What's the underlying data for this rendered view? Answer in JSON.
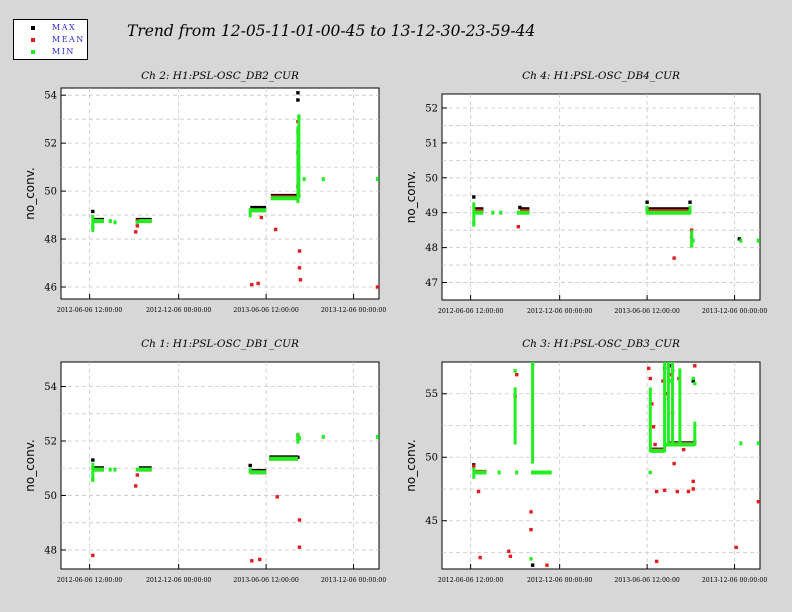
{
  "title": "Trend from 12-05-11-01-00-45 to 13-12-30-23-59-44",
  "legend": [
    {
      "label": "MAX",
      "color": "#000000"
    },
    {
      "label": "MEAN",
      "color": "#e41a1c"
    },
    {
      "label": "MIN",
      "color": "#22ee22"
    }
  ],
  "chart_data": [
    {
      "type": "scatter",
      "title": "Ch 2: H1:PSL-OSC_DB2_CUR",
      "ylabel": "no_conv.",
      "ylim": [
        45.5,
        54.3
      ],
      "yticks": [
        46,
        48,
        50,
        52,
        54
      ],
      "xlim": [
        0,
        1000
      ],
      "xticks": [
        {
          "x": 90,
          "label": "2012-06-06 12:00:00"
        },
        {
          "x": 370,
          "label": "2012-12-06 00:00:00"
        },
        {
          "x": 645,
          "label": "2013-06-06 12:00:00"
        },
        {
          "x": 920,
          "label": "2013-12-06 00:00:00"
        }
      ],
      "grid": true,
      "segments": {
        "MIN": [
          [
            100,
            135,
            48.75
          ],
          [
            150,
            160,
            48.75
          ],
          [
            165,
            175,
            48.7
          ],
          [
            235,
            240,
            48.7
          ],
          [
            245,
            285,
            48.75
          ],
          [
            595,
            645,
            49.2
          ],
          [
            660,
            745,
            49.7
          ],
          [
            760,
            765,
            50.5
          ],
          [
            820,
            825,
            50.5
          ],
          [
            990,
            995,
            50.5
          ]
        ],
        "MAX": [
          [
            100,
            135,
            48.8
          ],
          [
            235,
            285,
            48.8
          ],
          [
            595,
            645,
            49.3
          ],
          [
            660,
            745,
            49.8
          ]
        ],
        "MEAN": [
          [
            100,
            135,
            48.75
          ],
          [
            235,
            285,
            48.75
          ],
          [
            595,
            645,
            49.2
          ],
          [
            660,
            745,
            49.75
          ]
        ]
      },
      "vlines": {
        "MIN": [
          [
            100,
            48.3,
            49.0
          ],
          [
            595,
            48.9,
            49.3
          ],
          [
            745,
            49.5,
            52.7
          ],
          [
            748,
            49.7,
            53.2
          ]
        ]
      },
      "points": {
        "MAX": [
          [
            100,
            49.15
          ],
          [
            745,
            54.1
          ],
          [
            745,
            53.8
          ]
        ],
        "MEAN": [
          [
            235,
            48.3
          ],
          [
            240,
            48.55
          ],
          [
            600,
            46.1
          ],
          [
            620,
            46.15
          ],
          [
            630,
            48.9
          ],
          [
            675,
            48.4
          ],
          [
            745,
            52.9
          ],
          [
            745,
            51.6
          ],
          [
            745,
            50.2
          ],
          [
            748,
            49.8
          ],
          [
            750,
            47.5
          ],
          [
            750,
            46.8
          ],
          [
            753,
            46.3
          ],
          [
            995,
            46.0
          ]
        ],
        "MIN": [
          [
            100,
            48.5
          ],
          [
            745,
            52.5
          ],
          [
            748,
            53.1
          ],
          [
            748,
            50.9
          ]
        ]
      }
    },
    {
      "type": "scatter",
      "title": "Ch 4: H1:PSL-OSC_DB4_CUR",
      "ylabel": "no_conv.",
      "ylim": [
        46.5,
        52.4
      ],
      "yticks": [
        47,
        48,
        49,
        50,
        51,
        52
      ],
      "xlim": [
        0,
        1000
      ],
      "xticks": [
        {
          "x": 90,
          "label": "2012-06-06 12:00:00"
        },
        {
          "x": 370,
          "label": "2012-12-06 00:00:00"
        },
        {
          "x": 645,
          "label": "2013-06-06 12:00:00"
        },
        {
          "x": 920,
          "label": "2013-12-06 00:00:00"
        }
      ],
      "grid": true,
      "segments": {
        "MIN": [
          [
            100,
            130,
            49.0
          ],
          [
            155,
            160,
            49.0
          ],
          [
            180,
            185,
            49.0
          ],
          [
            235,
            240,
            49.0
          ],
          [
            245,
            275,
            49.0
          ],
          [
            645,
            780,
            49.0
          ],
          [
            785,
            790,
            48.2
          ],
          [
            935,
            940,
            48.2
          ],
          [
            990,
            995,
            48.2
          ]
        ],
        "MAX": [
          [
            100,
            130,
            49.1
          ],
          [
            245,
            275,
            49.1
          ],
          [
            645,
            780,
            49.1
          ]
        ],
        "MEAN": [
          [
            100,
            130,
            49.05
          ],
          [
            245,
            275,
            49.05
          ],
          [
            645,
            780,
            49.05
          ]
        ]
      },
      "vlines": {
        "MIN": [
          [
            100,
            48.6,
            49.3
          ],
          [
            645,
            48.95,
            49.2
          ],
          [
            780,
            48.95,
            49.2
          ],
          [
            785,
            48.1,
            48.5
          ]
        ]
      },
      "points": {
        "MAX": [
          [
            100,
            49.45
          ],
          [
            245,
            49.15
          ],
          [
            645,
            49.3
          ],
          [
            780,
            49.3
          ],
          [
            935,
            48.25
          ]
        ],
        "MEAN": [
          [
            240,
            48.6
          ],
          [
            645,
            49.1
          ],
          [
            730,
            47.7
          ],
          [
            785,
            48.5
          ],
          [
            785,
            48.3
          ]
        ],
        "MIN": [
          [
            100,
            48.7
          ],
          [
            785,
            48.05
          ]
        ]
      }
    },
    {
      "type": "scatter",
      "title": "Ch 1: H1:PSL-OSC_DB1_CUR",
      "ylabel": "no_conv.",
      "ylim": [
        47.3,
        54.9
      ],
      "yticks": [
        48,
        50,
        52,
        54
      ],
      "xlim": [
        0,
        1000
      ],
      "xticks": [
        {
          "x": 90,
          "label": "2012-06-06 12:00:00"
        },
        {
          "x": 370,
          "label": "2012-12-06 00:00:00"
        },
        {
          "x": 645,
          "label": "2013-06-06 12:00:00"
        },
        {
          "x": 920,
          "label": "2013-12-06 00:00:00"
        }
      ],
      "grid": true,
      "segments": {
        "MIN": [
          [
            100,
            135,
            50.95
          ],
          [
            150,
            155,
            50.95
          ],
          [
            165,
            170,
            50.95
          ],
          [
            235,
            240,
            50.95
          ],
          [
            245,
            285,
            50.95
          ],
          [
            595,
            645,
            50.85
          ],
          [
            655,
            745,
            51.35
          ],
          [
            745,
            755,
            52.1
          ],
          [
            820,
            825,
            52.15
          ],
          [
            990,
            995,
            52.15
          ]
        ],
        "MAX": [
          [
            100,
            135,
            51.0
          ],
          [
            245,
            285,
            51.0
          ],
          [
            595,
            645,
            50.9
          ],
          [
            655,
            745,
            51.4
          ]
        ],
        "MEAN": [
          [
            100,
            135,
            50.95
          ],
          [
            245,
            285,
            50.95
          ],
          [
            595,
            645,
            50.85
          ],
          [
            655,
            745,
            51.35
          ]
        ]
      },
      "vlines": {
        "MIN": [
          [
            100,
            50.5,
            51.2
          ],
          [
            595,
            50.8,
            51.0
          ],
          [
            745,
            51.9,
            52.3
          ]
        ]
      },
      "points": {
        "MAX": [
          [
            100,
            51.3
          ],
          [
            595,
            51.1
          ],
          [
            745,
            51.4
          ]
        ],
        "MEAN": [
          [
            100,
            47.8
          ],
          [
            235,
            50.35
          ],
          [
            240,
            50.75
          ],
          [
            600,
            47.6
          ],
          [
            625,
            47.65
          ],
          [
            680,
            49.95
          ],
          [
            750,
            49.1
          ],
          [
            750,
            48.1
          ],
          [
            745,
            52.2
          ]
        ],
        "MIN": [
          [
            100,
            50.6
          ],
          [
            745,
            52.05
          ]
        ]
      }
    },
    {
      "type": "scatter",
      "title": "Ch 3: H1:PSL-OSC_DB3_CUR",
      "ylabel": "no_conv.",
      "ylim": [
        41.2,
        57.5
      ],
      "yticks": [
        45,
        50,
        55
      ],
      "xlim": [
        0,
        1000
      ],
      "xticks": [
        {
          "x": 90,
          "label": "2012-06-06 12:00:00"
        },
        {
          "x": 370,
          "label": "2012-12-06 00:00:00"
        },
        {
          "x": 645,
          "label": "2013-06-06 12:00:00"
        },
        {
          "x": 920,
          "label": "2013-12-06 00:00:00"
        }
      ],
      "grid": true,
      "segments": {
        "MIN": [
          [
            100,
            140,
            48.8
          ],
          [
            175,
            180,
            48.8
          ],
          [
            230,
            235,
            48.8
          ],
          [
            280,
            285,
            48.8
          ],
          [
            285,
            345,
            48.8
          ],
          [
            655,
            700,
            50.5
          ],
          [
            710,
            795,
            51.0
          ],
          [
            700,
            712,
            51.0
          ],
          [
            935,
            940,
            51.1
          ],
          [
            990,
            995,
            51.1
          ]
        ],
        "MAX": [
          [
            655,
            700,
            50.6
          ],
          [
            710,
            795,
            51.1
          ]
        ],
        "MEAN": [
          [
            100,
            140,
            48.85
          ],
          [
            655,
            700,
            50.55
          ],
          [
            710,
            795,
            51.05
          ]
        ]
      },
      "vlines": {
        "MIN": [
          [
            100,
            48.3,
            49.2
          ],
          [
            230,
            51.0,
            55.5
          ],
          [
            285,
            49.5,
            57.5
          ],
          [
            655,
            50.4,
            55.5
          ],
          [
            700,
            50.4,
            57.5
          ],
          [
            712,
            50.9,
            57.5
          ],
          [
            725,
            51.0,
            57.5
          ],
          [
            748,
            51.0,
            57.0
          ],
          [
            795,
            50.9,
            52.8
          ]
        ]
      },
      "points": {
        "MAX": [
          [
            100,
            49.4
          ],
          [
            285,
            41.5
          ],
          [
            700,
            57.0
          ],
          [
            715,
            57.2
          ],
          [
            725,
            56.8
          ],
          [
            790,
            56.0
          ]
        ],
        "MEAN": [
          [
            100,
            49.3
          ],
          [
            115,
            47.3
          ],
          [
            120,
            42.1
          ],
          [
            210,
            42.6
          ],
          [
            215,
            42.2
          ],
          [
            230,
            54.8
          ],
          [
            235,
            56.5
          ],
          [
            280,
            44.3
          ],
          [
            280,
            45.7
          ],
          [
            330,
            41.5
          ],
          [
            650,
            57.0
          ],
          [
            655,
            56.2
          ],
          [
            660,
            54.2
          ],
          [
            665,
            52.4
          ],
          [
            670,
            51.0
          ],
          [
            675,
            47.3
          ],
          [
            695,
            56.0
          ],
          [
            700,
            47.4
          ],
          [
            705,
            55.0
          ],
          [
            720,
            56.5
          ],
          [
            725,
            53.5
          ],
          [
            730,
            49.5
          ],
          [
            740,
            47.3
          ],
          [
            745,
            56.2
          ],
          [
            760,
            50.6
          ],
          [
            775,
            47.3
          ],
          [
            790,
            47.5
          ],
          [
            790,
            48.1
          ],
          [
            795,
            57.2
          ],
          [
            795,
            51.2
          ],
          [
            925,
            42.9
          ],
          [
            995,
            46.5
          ],
          [
            675,
            41.8
          ]
        ],
        "MIN": [
          [
            230,
            56.8
          ],
          [
            280,
            42.0
          ],
          [
            285,
            57.3
          ],
          [
            655,
            48.8
          ],
          [
            720,
            56.0
          ],
          [
            790,
            56.2
          ],
          [
            795,
            55.8
          ]
        ]
      }
    }
  ]
}
